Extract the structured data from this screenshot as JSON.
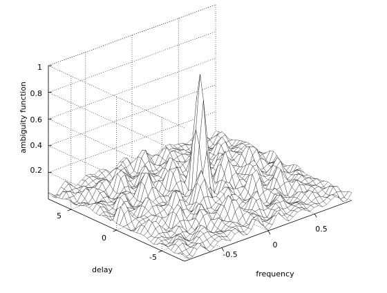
{
  "chart_data": {
    "type": "surface",
    "xlabel": "frequency",
    "ylabel": "delay",
    "zlabel": "ambiguity function",
    "x_ticks": [
      "-0.5",
      "0",
      "0.5"
    ],
    "y_ticks": [
      "-5",
      "0",
      "5"
    ],
    "z_ticks": [
      "0.2",
      "0.4",
      "0.6",
      "0.8",
      "1"
    ],
    "xlim": [
      -0.9,
      0.9
    ],
    "ylim": [
      -7.5,
      7.5
    ],
    "zlim": [
      0,
      1
    ],
    "grid": true,
    "peak": {
      "frequency": 0,
      "delay": 0,
      "value": 0.94
    },
    "sidelobe_level": 0.3,
    "mesh": {
      "frequency_points": 41,
      "delay_points": 41
    }
  }
}
